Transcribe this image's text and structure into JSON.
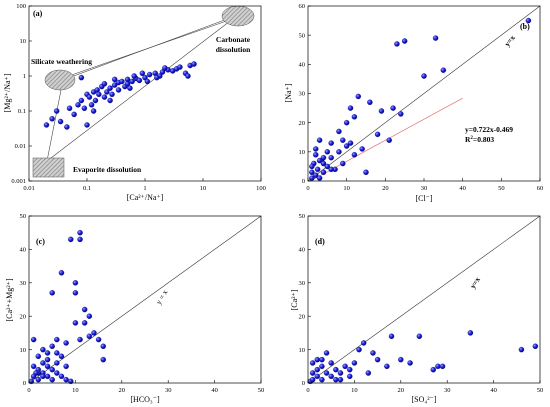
{
  "chart_data": [
    {
      "panel": "(a)",
      "type": "scatter",
      "xlabel": "[Ca²⁺/Na⁺]",
      "ylabel": "[Mg²⁺/Na⁺]",
      "xscale": "log",
      "yscale": "log",
      "xlim": [
        0.01,
        100
      ],
      "ylim": [
        0.001,
        100
      ],
      "xticks": [
        "0.01",
        "0.1",
        "1",
        "10",
        "100"
      ],
      "yticks": [
        "0.001",
        "0.01",
        "0.1",
        "1",
        "10",
        "100"
      ],
      "annotations": {
        "silicate": "Silicate weathering",
        "carbonate_1": "Carbonate",
        "carbonate_2": "dissolution",
        "evaporite": "Evaporite dissolution"
      },
      "marker_color": "#1c1fd6",
      "points": [
        [
          0.02,
          0.04
        ],
        [
          0.025,
          0.06
        ],
        [
          0.03,
          0.1
        ],
        [
          0.035,
          0.05
        ],
        [
          0.045,
          0.035
        ],
        [
          0.05,
          0.12
        ],
        [
          0.06,
          0.08
        ],
        [
          0.07,
          0.15
        ],
        [
          0.08,
          0.2
        ],
        [
          0.08,
          0.9
        ],
        [
          0.09,
          0.12
        ],
        [
          0.1,
          0.04
        ],
        [
          0.1,
          0.3
        ],
        [
          0.11,
          0.25
        ],
        [
          0.12,
          0.15
        ],
        [
          0.13,
          0.35
        ],
        [
          0.14,
          0.2
        ],
        [
          0.15,
          0.4
        ],
        [
          0.16,
          0.3
        ],
        [
          0.18,
          0.5
        ],
        [
          0.2,
          0.25
        ],
        [
          0.2,
          0.6
        ],
        [
          0.22,
          0.35
        ],
        [
          0.25,
          0.45
        ],
        [
          0.27,
          0.3
        ],
        [
          0.3,
          0.55
        ],
        [
          0.3,
          0.8
        ],
        [
          0.35,
          0.4
        ],
        [
          0.35,
          0.65
        ],
        [
          0.4,
          0.7
        ],
        [
          0.45,
          0.5
        ],
        [
          0.5,
          0.6
        ],
        [
          0.5,
          0.8
        ],
        [
          0.6,
          0.7
        ],
        [
          0.7,
          0.85
        ],
        [
          0.8,
          0.75
        ],
        [
          1,
          0.9
        ],
        [
          1.1,
          0.7
        ],
        [
          1.2,
          1.1
        ],
        [
          1.5,
          1.2
        ],
        [
          1.8,
          1.0
        ],
        [
          2,
          1.3
        ],
        [
          2.5,
          1.5
        ],
        [
          3,
          1.4
        ],
        [
          3.5,
          1.6
        ],
        [
          4,
          1.8
        ],
        [
          5,
          1.2
        ],
        [
          5.5,
          1.0
        ],
        [
          6,
          2.0
        ],
        [
          7,
          2.2
        ],
        [
          1.6,
          0.9
        ],
        [
          2.2,
          1.7
        ],
        [
          0.65,
          1.0
        ],
        [
          0.9,
          1.2
        ],
        [
          0.55,
          0.45
        ],
        [
          0.25,
          0.2
        ],
        [
          0.13,
          0.1
        ]
      ]
    },
    {
      "panel": "(b)",
      "type": "scatter",
      "xlabel": "[Cl⁻]",
      "ylabel": "[Na⁺]",
      "xlim": [
        0,
        60
      ],
      "ylim": [
        0,
        60
      ],
      "xticks": [
        "0",
        "10",
        "20",
        "30",
        "40",
        "50",
        "60"
      ],
      "yticks": [
        "0",
        "10",
        "20",
        "30",
        "40",
        "50",
        "60"
      ],
      "one_to_one_label": "y=x",
      "fit": {
        "slope": 0.722,
        "intercept": -0.469,
        "line_color": "#e96f6f",
        "equation": "y=0.722x-0.469",
        "r2_prefix": "R",
        "r2_sup": "2",
        "r2_value": "=0.803"
      },
      "marker_color": "#1c1fd6",
      "points": [
        [
          1,
          1
        ],
        [
          1,
          3
        ],
        [
          1.5,
          6
        ],
        [
          2,
          2
        ],
        [
          2,
          9
        ],
        [
          2.5,
          4
        ],
        [
          3,
          1
        ],
        [
          3,
          14
        ],
        [
          3.5,
          7
        ],
        [
          4,
          3
        ],
        [
          4,
          8
        ],
        [
          5,
          5
        ],
        [
          5,
          10
        ],
        [
          6,
          8
        ],
        [
          6,
          13
        ],
        [
          7,
          4
        ],
        [
          8,
          10
        ],
        [
          8,
          17
        ],
        [
          9,
          6
        ],
        [
          10,
          12
        ],
        [
          10,
          20
        ],
        [
          11,
          13
        ],
        [
          12,
          22
        ],
        [
          12,
          9
        ],
        [
          13,
          29
        ],
        [
          15,
          3
        ],
        [
          16,
          27
        ],
        [
          18,
          16
        ],
        [
          19,
          24
        ],
        [
          21,
          14
        ],
        [
          22,
          25
        ],
        [
          23,
          47
        ],
        [
          24,
          23
        ],
        [
          25,
          48
        ],
        [
          30,
          36
        ],
        [
          33,
          49
        ],
        [
          35,
          38
        ],
        [
          57,
          55
        ],
        [
          1,
          5
        ],
        [
          2,
          11
        ],
        [
          3,
          7
        ],
        [
          4,
          6
        ],
        [
          6,
          4
        ],
        [
          9,
          14
        ],
        [
          11,
          25
        ],
        [
          14,
          11
        ]
      ]
    },
    {
      "panel": "(c)",
      "type": "scatter",
      "xlabel": "[HCO₃⁻]",
      "ylabel": "[Ca²⁺+Mg²⁺]",
      "xlim": [
        0,
        50
      ],
      "ylim": [
        0,
        50
      ],
      "xticks": [
        "0",
        "10",
        "20",
        "30",
        "40",
        "50"
      ],
      "yticks": [
        "0",
        "10",
        "20",
        "30",
        "40",
        "50"
      ],
      "one_to_one_label": "y = x",
      "marker_color": "#1c1fd6",
      "points": [
        [
          1,
          2
        ],
        [
          1,
          5
        ],
        [
          1,
          13
        ],
        [
          2,
          1
        ],
        [
          2,
          4
        ],
        [
          2,
          8
        ],
        [
          3,
          3
        ],
        [
          3,
          6
        ],
        [
          3,
          10
        ],
        [
          4,
          2
        ],
        [
          4,
          5
        ],
        [
          4,
          7
        ],
        [
          5,
          1
        ],
        [
          5,
          4
        ],
        [
          5,
          11
        ],
        [
          5,
          27
        ],
        [
          6,
          3
        ],
        [
          6,
          9
        ],
        [
          6,
          13
        ],
        [
          7,
          2
        ],
        [
          7,
          8
        ],
        [
          7,
          33
        ],
        [
          8,
          1
        ],
        [
          8,
          12
        ],
        [
          9,
          0.5
        ],
        [
          9,
          43
        ],
        [
          10,
          27
        ],
        [
          10,
          18
        ],
        [
          10,
          30
        ],
        [
          11,
          43
        ],
        [
          11,
          45
        ],
        [
          12,
          18
        ],
        [
          12,
          22
        ],
        [
          13,
          20
        ],
        [
          13,
          14
        ],
        [
          14,
          15
        ],
        [
          15,
          13
        ],
        [
          16,
          11
        ],
        [
          16,
          7
        ],
        [
          3,
          2
        ],
        [
          2,
          3
        ],
        [
          4,
          9
        ],
        [
          6,
          6
        ],
        [
          8,
          5
        ],
        [
          11,
          13
        ],
        [
          0.5,
          0.5
        ],
        [
          1.5,
          3
        ]
      ]
    },
    {
      "panel": "(d)",
      "type": "scatter",
      "xlabel": "[SO₄²⁻]",
      "ylabel": "[Ca²⁺]",
      "xlim": [
        0,
        50
      ],
      "ylim": [
        0,
        50
      ],
      "xticks": [
        "0",
        "10",
        "20",
        "30",
        "40",
        "50"
      ],
      "yticks": [
        "0",
        "10",
        "20",
        "30",
        "40",
        "50"
      ],
      "one_to_one_label": "y=x",
      "marker_color": "#1c1fd6",
      "points": [
        [
          0.5,
          0.5
        ],
        [
          1,
          1
        ],
        [
          1,
          3
        ],
        [
          1,
          6
        ],
        [
          2,
          2
        ],
        [
          2,
          4
        ],
        [
          2,
          7
        ],
        [
          3,
          1
        ],
        [
          3,
          5
        ],
        [
          4,
          3
        ],
        [
          4,
          9
        ],
        [
          5,
          2
        ],
        [
          5,
          6
        ],
        [
          6,
          4
        ],
        [
          7,
          1
        ],
        [
          7,
          3
        ],
        [
          8,
          5
        ],
        [
          9,
          4
        ],
        [
          10,
          6
        ],
        [
          11,
          10
        ],
        [
          12,
          12
        ],
        [
          13,
          3
        ],
        [
          14,
          9
        ],
        [
          15,
          7
        ],
        [
          17,
          5
        ],
        [
          18,
          14
        ],
        [
          20,
          7
        ],
        [
          22,
          6
        ],
        [
          24,
          14
        ],
        [
          27,
          4
        ],
        [
          28,
          5
        ],
        [
          29,
          5
        ],
        [
          35,
          15
        ],
        [
          46,
          10
        ],
        [
          49,
          11
        ],
        [
          3,
          7
        ],
        [
          6,
          1
        ],
        [
          9,
          2
        ]
      ]
    }
  ]
}
